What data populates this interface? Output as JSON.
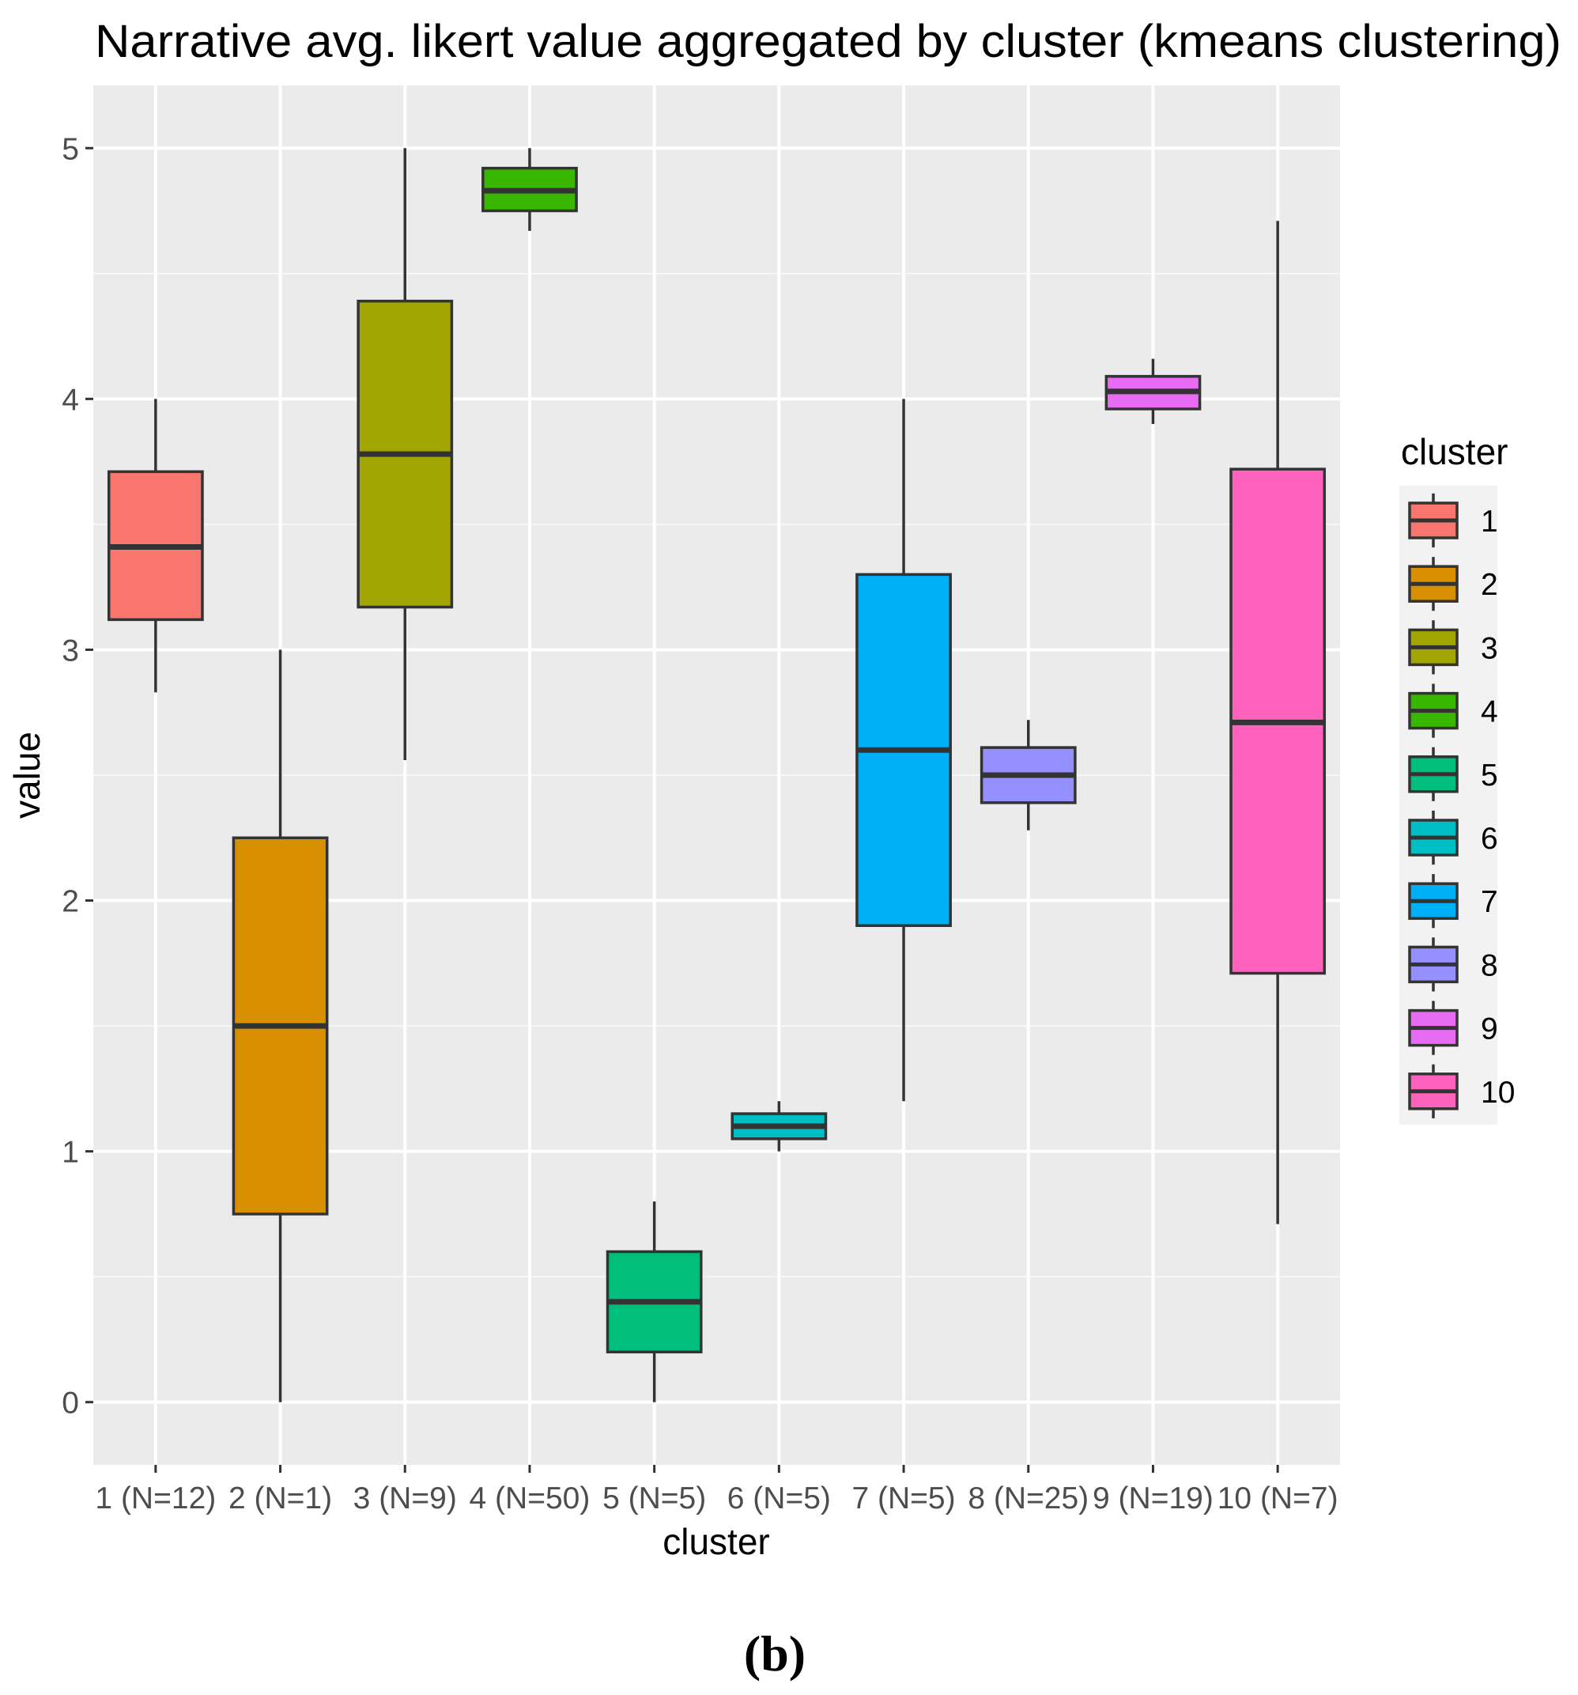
{
  "chart_data": {
    "type": "boxplot",
    "title": "Narrative avg. likert value aggregated by cluster (kmeans clustering)",
    "xlabel": "cluster",
    "ylabel": "value",
    "ylim": [
      -0.25,
      5.25
    ],
    "y_ticks": [
      0,
      1,
      2,
      3,
      4,
      5
    ],
    "y_tick_labels": [
      "0",
      "1",
      "2",
      "3",
      "4",
      "5"
    ],
    "categories": [
      "1 (N=12)",
      "2 (N=1)",
      "3 (N=9)",
      "4 (N=50)",
      "5 (N=5)",
      "6 (N=5)",
      "7 (N=5)",
      "8 (N=25)",
      "9 (N=19)",
      "10 (N=7)"
    ],
    "boxes": [
      {
        "cluster": "1",
        "min": 2.83,
        "q1": 3.12,
        "median": 3.41,
        "q3": 3.71,
        "max": 4.0,
        "color": "#F8766D"
      },
      {
        "cluster": "2",
        "min": 0.0,
        "q1": 0.75,
        "median": 1.5,
        "q3": 2.25,
        "max": 3.0,
        "color": "#D89000"
      },
      {
        "cluster": "3",
        "min": 2.56,
        "q1": 3.17,
        "median": 3.78,
        "q3": 4.39,
        "max": 5.0,
        "color": "#A3A500"
      },
      {
        "cluster": "4",
        "min": 4.67,
        "q1": 4.75,
        "median": 4.83,
        "q3": 4.92,
        "max": 5.0,
        "color": "#39B600"
      },
      {
        "cluster": "5",
        "min": 0.0,
        "q1": 0.2,
        "median": 0.4,
        "q3": 0.6,
        "max": 0.8,
        "color": "#00BF7D"
      },
      {
        "cluster": "6",
        "min": 1.0,
        "q1": 1.05,
        "median": 1.1,
        "q3": 1.15,
        "max": 1.2,
        "color": "#00BFC4"
      },
      {
        "cluster": "7",
        "min": 1.2,
        "q1": 1.9,
        "median": 2.6,
        "q3": 3.3,
        "max": 4.0,
        "color": "#00B0F6"
      },
      {
        "cluster": "8",
        "min": 2.28,
        "q1": 2.39,
        "median": 2.5,
        "q3": 2.61,
        "max": 2.72,
        "color": "#9590FF"
      },
      {
        "cluster": "9",
        "min": 3.9,
        "q1": 3.96,
        "median": 4.03,
        "q3": 4.09,
        "max": 4.16,
        "color": "#E76BF3"
      },
      {
        "cluster": "10",
        "min": 0.71,
        "q1": 1.71,
        "median": 2.71,
        "q3": 3.72,
        "max": 4.71,
        "color": "#FF62BC"
      }
    ],
    "legend": {
      "title": "cluster",
      "position": "right",
      "items": [
        "1",
        "2",
        "3",
        "4",
        "5",
        "6",
        "7",
        "8",
        "9",
        "10"
      ]
    }
  },
  "caption": "(b)"
}
